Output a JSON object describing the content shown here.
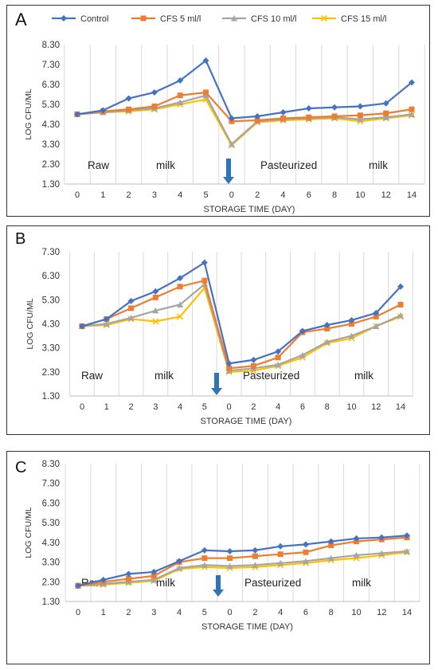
{
  "legend": {
    "entries": [
      {
        "label": "Control",
        "color": "#4472C4",
        "marker": "diamond"
      },
      {
        "label": "CFS 5 ml/l",
        "color": "#ED7D31",
        "marker": "square"
      },
      {
        "label": "CFS 10 ml/l",
        "color": "#A5A5A5",
        "marker": "triangle"
      },
      {
        "label": "CFS 15 ml/l",
        "color": "#FFC000",
        "marker": "x"
      }
    ]
  },
  "chart_data": [
    {
      "panel_label": "A",
      "type": "line",
      "ylabel": "LOG CFU/ML",
      "xlabel": "STORAGE TIME (DAY)",
      "ylim": [
        1.3,
        8.3
      ],
      "yticks": [
        "1.30",
        "2.30",
        "3.30",
        "4.30",
        "5.30",
        "6.30",
        "7.30",
        "8.30"
      ],
      "categories": [
        "0",
        "1",
        "2",
        "3",
        "4",
        "5",
        "0",
        "2",
        "4",
        "6",
        "8",
        "10",
        "12",
        "14"
      ],
      "phase_labels": [
        "Raw",
        "milk",
        "Pasteurized",
        "milk"
      ],
      "grid": "vertical",
      "legend_position": "top",
      "series": [
        {
          "name": "Control",
          "values": [
            4.8,
            5.0,
            5.6,
            5.9,
            6.5,
            7.5,
            4.6,
            4.7,
            4.9,
            5.1,
            5.15,
            5.2,
            5.35,
            6.4
          ]
        },
        {
          "name": "CFS 5 ml/l",
          "values": [
            4.8,
            4.95,
            5.05,
            5.2,
            5.75,
            5.9,
            4.45,
            4.5,
            4.6,
            4.65,
            4.7,
            4.75,
            4.85,
            5.05
          ]
        },
        {
          "name": "CFS 10 ml/l",
          "values": [
            4.8,
            4.9,
            5.0,
            5.1,
            5.4,
            5.75,
            3.3,
            4.45,
            4.55,
            4.6,
            4.65,
            4.55,
            4.65,
            4.8
          ]
        },
        {
          "name": "CFS 15 ml/l",
          "values": [
            4.8,
            4.9,
            4.95,
            5.05,
            5.3,
            5.55,
            3.25,
            4.4,
            4.5,
            4.55,
            4.6,
            4.45,
            4.6,
            4.75
          ]
        }
      ]
    },
    {
      "panel_label": "B",
      "type": "line",
      "ylabel": "LOG CFU/ML",
      "xlabel": "STORAGE TIME (DAY)",
      "ylim": [
        1.3,
        7.3
      ],
      "yticks": [
        "1.30",
        "2.30",
        "3.30",
        "4.30",
        "5.30",
        "6.30",
        "7.30"
      ],
      "categories": [
        "0",
        "1",
        "2",
        "3",
        "4",
        "5",
        "0",
        "2",
        "4",
        "6",
        "8",
        "10",
        "12",
        "14"
      ],
      "phase_labels": [
        "Raw",
        "milk",
        "Pasteurized",
        "milk"
      ],
      "grid": "vertical",
      "series": [
        {
          "name": "Control",
          "values": [
            4.2,
            4.5,
            5.25,
            5.65,
            6.2,
            6.85,
            2.65,
            2.8,
            3.15,
            4.0,
            4.25,
            4.45,
            4.75,
            5.85
          ]
        },
        {
          "name": "CFS 5 ml/l",
          "values": [
            4.2,
            4.5,
            4.95,
            5.4,
            5.85,
            6.1,
            2.45,
            2.55,
            2.9,
            3.95,
            4.1,
            4.3,
            4.6,
            5.1
          ]
        },
        {
          "name": "CFS 10 ml/l",
          "values": [
            4.2,
            4.3,
            4.55,
            4.85,
            5.1,
            5.95,
            2.35,
            2.45,
            2.6,
            3.0,
            3.55,
            3.8,
            4.2,
            4.65
          ]
        },
        {
          "name": "CFS 15 ml/l",
          "values": [
            4.2,
            4.25,
            4.5,
            4.4,
            4.6,
            5.8,
            2.3,
            2.35,
            2.55,
            2.9,
            3.5,
            3.7,
            4.2,
            4.6
          ]
        }
      ]
    },
    {
      "panel_label": "C",
      "type": "line",
      "ylabel": "LOG CFU/ML",
      "xlabel": "STORAGE TIME (DAY)",
      "ylim": [
        1.3,
        8.3
      ],
      "yticks": [
        "1.30",
        "2.30",
        "3.30",
        "4.30",
        "5.30",
        "6.30",
        "7.30",
        "8.30"
      ],
      "categories": [
        "0",
        "1",
        "2",
        "3",
        "4",
        "5",
        "0",
        "2",
        "4",
        "6",
        "8",
        "10",
        "12",
        "14"
      ],
      "phase_labels": [
        "Raw",
        "milk",
        "Pasteurized",
        "milk"
      ],
      "grid": "vertical",
      "series": [
        {
          "name": "Control",
          "values": [
            2.1,
            2.4,
            2.7,
            2.8,
            3.35,
            3.9,
            3.85,
            3.9,
            4.1,
            4.2,
            4.35,
            4.5,
            4.55,
            4.65
          ]
        },
        {
          "name": "CFS 5 ml/l",
          "values": [
            2.1,
            2.3,
            2.45,
            2.6,
            3.3,
            3.5,
            3.5,
            3.6,
            3.7,
            3.8,
            4.15,
            4.35,
            4.45,
            4.55
          ]
        },
        {
          "name": "CFS 10 ml/l",
          "values": [
            2.1,
            2.2,
            2.3,
            2.4,
            3.0,
            3.15,
            3.1,
            3.15,
            3.25,
            3.35,
            3.5,
            3.65,
            3.75,
            3.85
          ]
        },
        {
          "name": "CFS 15 ml/l",
          "values": [
            2.1,
            2.15,
            2.25,
            2.35,
            2.95,
            3.05,
            3.0,
            3.05,
            3.15,
            3.25,
            3.4,
            3.5,
            3.65,
            3.8
          ]
        }
      ]
    }
  ]
}
